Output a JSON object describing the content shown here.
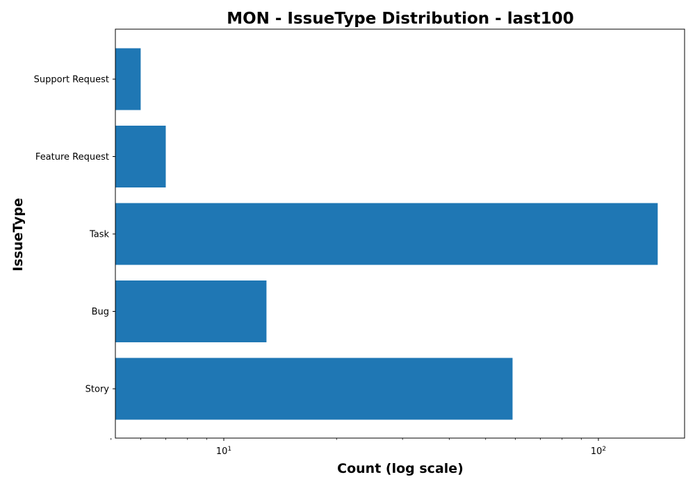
{
  "chart_data": {
    "type": "bar",
    "orientation": "horizontal",
    "title": "MON - IssueType Distribution - last100",
    "xlabel": "Count (log scale)",
    "ylabel": "IssueType",
    "x_scale": "log",
    "xlim": [
      5,
      165
    ],
    "x_ticks": [
      10,
      100
    ],
    "categories": [
      "Story",
      "Bug",
      "Task",
      "Feature Request",
      "Support Request"
    ],
    "values": [
      59,
      13,
      144,
      7,
      6
    ],
    "bar_color": "#1f77b4",
    "grid": false,
    "legend": "none"
  }
}
